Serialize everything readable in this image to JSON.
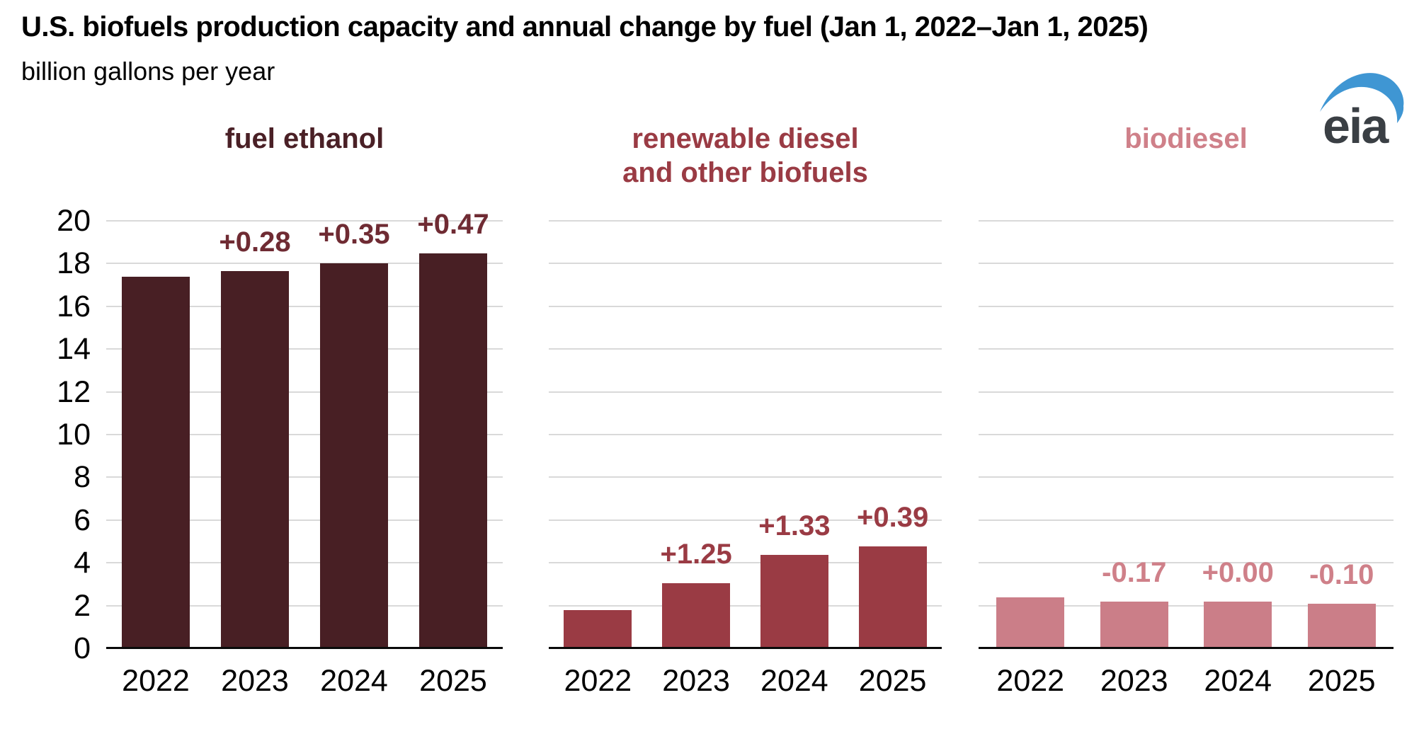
{
  "header": {
    "title": "U.S. biofuels production capacity and annual change by fuel (Jan 1, 2022–Jan 1, 2025)",
    "subtitle": "billion gallons per year"
  },
  "logo": {
    "text": "eia",
    "text_color": "#3a3f44",
    "swoosh_color": "#3f96d3"
  },
  "colors": {
    "background": "#ffffff",
    "gridline": "#d9d9d9",
    "axis_line": "#0a0a0a",
    "axis_text": "#000000"
  },
  "axis": {
    "y_tick_labels": [
      "0",
      "2",
      "4",
      "6",
      "8",
      "10",
      "12",
      "14",
      "16",
      "18",
      "20"
    ],
    "x_tick_labels": [
      "2022",
      "2023",
      "2024",
      "2025"
    ]
  },
  "chart_data": {
    "type": "bar",
    "title": "U.S. biofuels production capacity and annual change by fuel (Jan 1, 2022–Jan 1, 2025)",
    "ylabel": "billion gallons per year",
    "categories": [
      "2022",
      "2023",
      "2024",
      "2025"
    ],
    "ylim": [
      0,
      20
    ],
    "y_tick_step": 2,
    "grid": true,
    "legend": "none",
    "panels": [
      {
        "series_name": "fuel ethanol",
        "title_lines": [
          "fuel ethanol"
        ],
        "values": [
          17.38,
          17.66,
          18.01,
          18.48
        ],
        "annotations": [
          "",
          "+0.28",
          "+0.35",
          "+0.47"
        ],
        "bar_color": "#481f24",
        "title_color": "#4a2026",
        "annotation_color": "#6f2b33"
      },
      {
        "series_name": "renewable diesel and other biofuels",
        "title_lines": [
          "renewable diesel",
          "and other biofuels"
        ],
        "values": [
          1.8,
          3.05,
          4.38,
          4.77
        ],
        "annotations": [
          "",
          "+1.25",
          "+1.33",
          "+0.39"
        ],
        "bar_color": "#9a3b44",
        "title_color": "#9a3b44",
        "annotation_color": "#9a3b44"
      },
      {
        "series_name": "biodiesel",
        "title_lines": [
          "biodiesel"
        ],
        "values": [
          2.37,
          2.2,
          2.2,
          2.1
        ],
        "annotations": [
          "",
          "-0.17",
          "+0.00",
          "-0.10"
        ],
        "bar_color": "#cb7e88",
        "title_color": "#cf8089",
        "annotation_color": "#cf8089"
      }
    ]
  }
}
